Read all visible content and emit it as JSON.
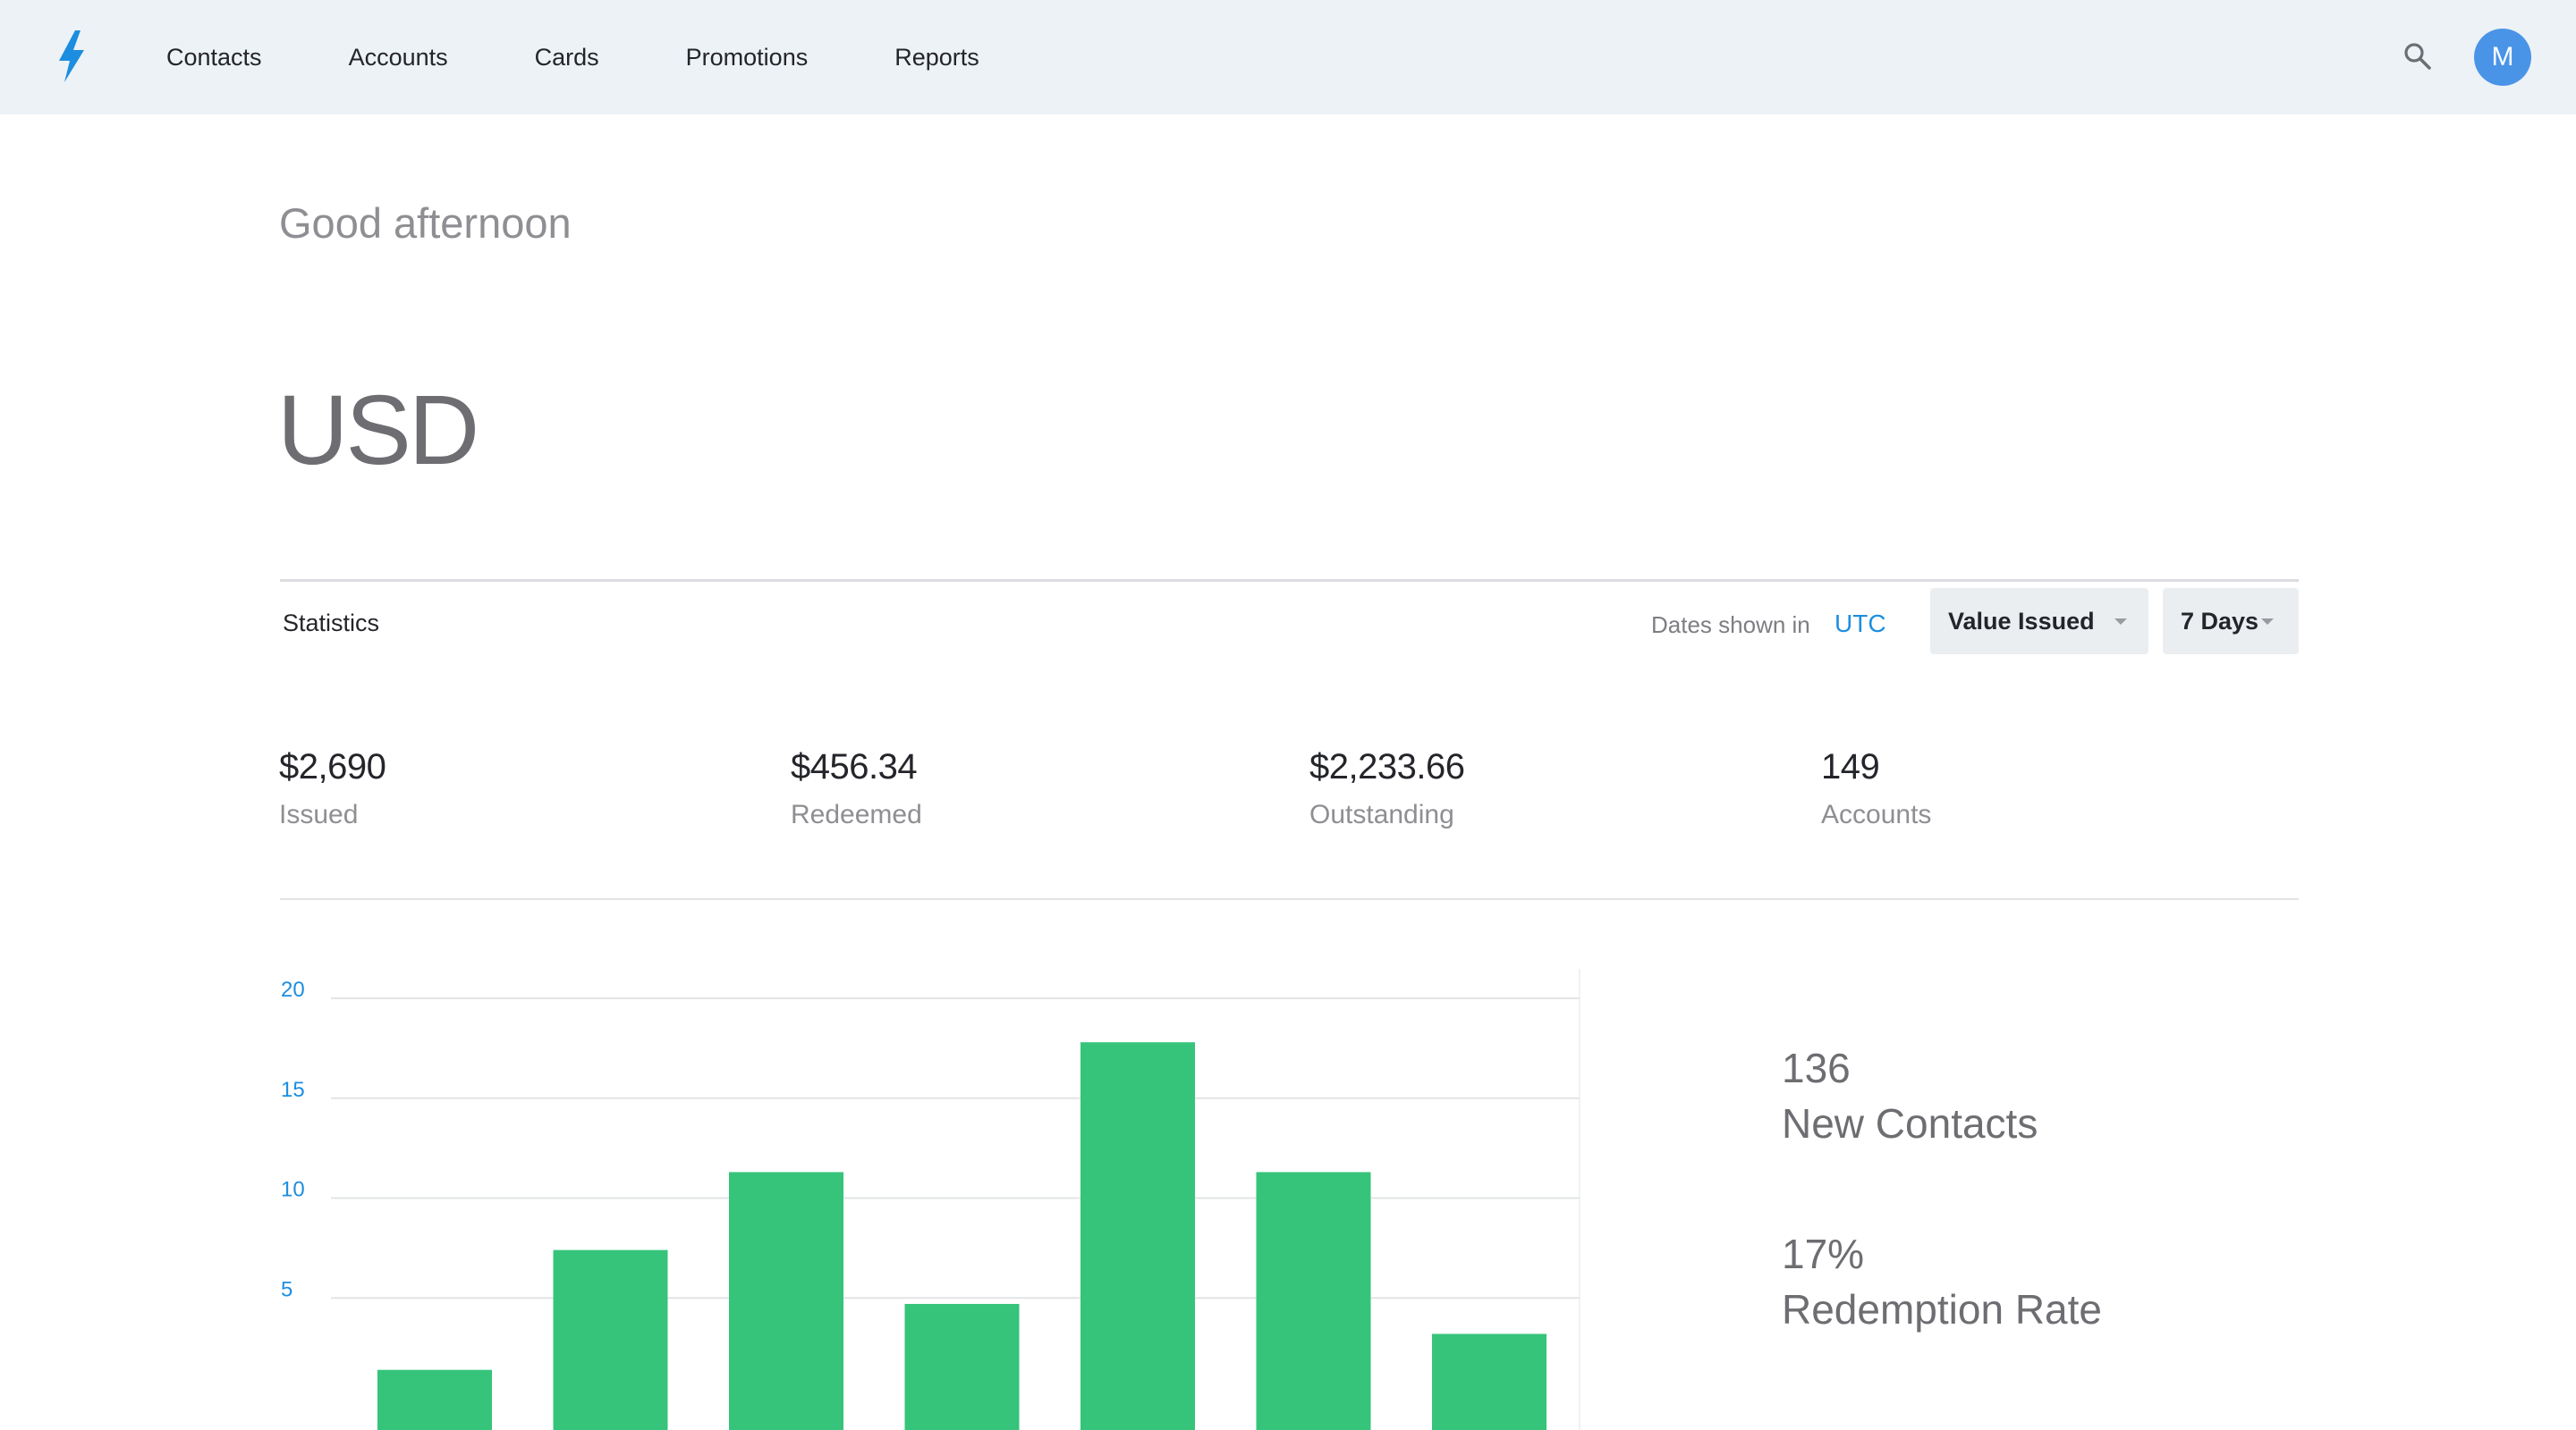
{
  "nav": {
    "logo_icon": "lightning-bolt-icon",
    "items": [
      {
        "label": "Contacts"
      },
      {
        "label": "Accounts"
      },
      {
        "label": "Cards"
      },
      {
        "label": "Promotions"
      },
      {
        "label": "Reports"
      }
    ],
    "search_icon": "search-icon",
    "avatar_initial": "M"
  },
  "greeting": "Good afternoon",
  "currency": "USD",
  "statistics": {
    "title": "Statistics",
    "dates_label": "Dates shown in",
    "timezone": "UTC",
    "metric_dropdown": "Value Issued",
    "range_dropdown": "7 Days"
  },
  "stats": [
    {
      "value": "$2,690",
      "label": "Issued"
    },
    {
      "value": "$456.34",
      "label": "Redeemed"
    },
    {
      "value": "$2,233.66",
      "label": "Outstanding"
    },
    {
      "value": "149",
      "label": "Accounts"
    }
  ],
  "side_metrics": [
    {
      "value": "136",
      "label": "New Contacts"
    },
    {
      "value": "17%",
      "label": "Redemption Rate"
    }
  ],
  "colors": {
    "bar": "#36c47a",
    "accent": "#1c8ee0",
    "topbar": "#edf2f7",
    "avatar": "#4a94e8"
  },
  "chart_data": {
    "type": "bar",
    "categories": [
      "",
      "",
      "",
      "",
      "",
      "",
      ""
    ],
    "values": [
      1.4,
      7.4,
      11.3,
      4.7,
      17.8,
      11.3,
      3.2
    ],
    "yticks": [
      "5",
      "10",
      "15",
      "20"
    ],
    "ytick_values": [
      5,
      10,
      15,
      20
    ],
    "ylim": [
      0,
      20
    ],
    "grid": true,
    "legend": "none"
  }
}
